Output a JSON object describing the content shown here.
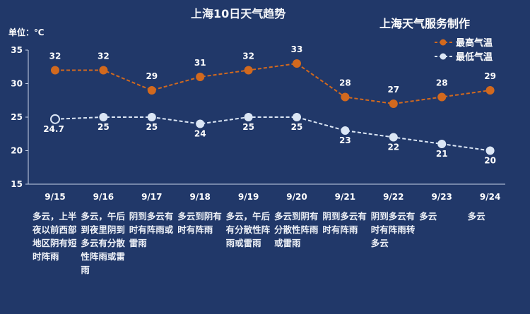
{
  "header": {
    "title": "上海10日天气趋势",
    "brand": "上海天气服务制作",
    "unit": "单位：℃"
  },
  "colors": {
    "background": "#213869",
    "high": "#d2691e",
    "low": "#dbe6f5",
    "axis": "#c8d2e6"
  },
  "chart_data": {
    "type": "line",
    "title": "上海10日天气趋势",
    "ylabel": "单位：℃",
    "ylim": [
      15,
      35
    ],
    "yticks": [
      15,
      20,
      25,
      30,
      35
    ],
    "categories": [
      "9/15",
      "9/16",
      "9/17",
      "9/18",
      "9/19",
      "9/20",
      "9/21",
      "9/22",
      "9/23",
      "9/24"
    ],
    "series": [
      {
        "name": "最高气温",
        "values": [
          32,
          32,
          29,
          31,
          32,
          33,
          28,
          27,
          28,
          29
        ],
        "labels": [
          "32",
          "32",
          "29",
          "31",
          "32",
          "33",
          "28",
          "27",
          "28",
          "29"
        ]
      },
      {
        "name": "最低气温",
        "values": [
          24.7,
          25,
          25,
          24,
          25,
          25,
          23,
          22,
          21,
          20
        ],
        "labels": [
          "24.7",
          "25",
          "25",
          "24",
          "25",
          "25",
          "23",
          "22",
          "21",
          "20"
        ]
      }
    ],
    "legend": "bottom-right",
    "grid": false
  },
  "descriptions": [
    "多云，上半夜以前西部地区阴有短时阵雨",
    "多云，午后到夜里阴到多云有分散性阵雨或雷雨",
    "阴到多云有时有阵雨或雷雨",
    "多云到阴有时有阵雨",
    "多云，午后有分散性阵雨或雷雨",
    "多云到阴有分散性阵雨或雷雨",
    "阴到多云有时有阵雨",
    "阴到多云有时有阵雨转多云",
    "多云",
    "多云"
  ]
}
